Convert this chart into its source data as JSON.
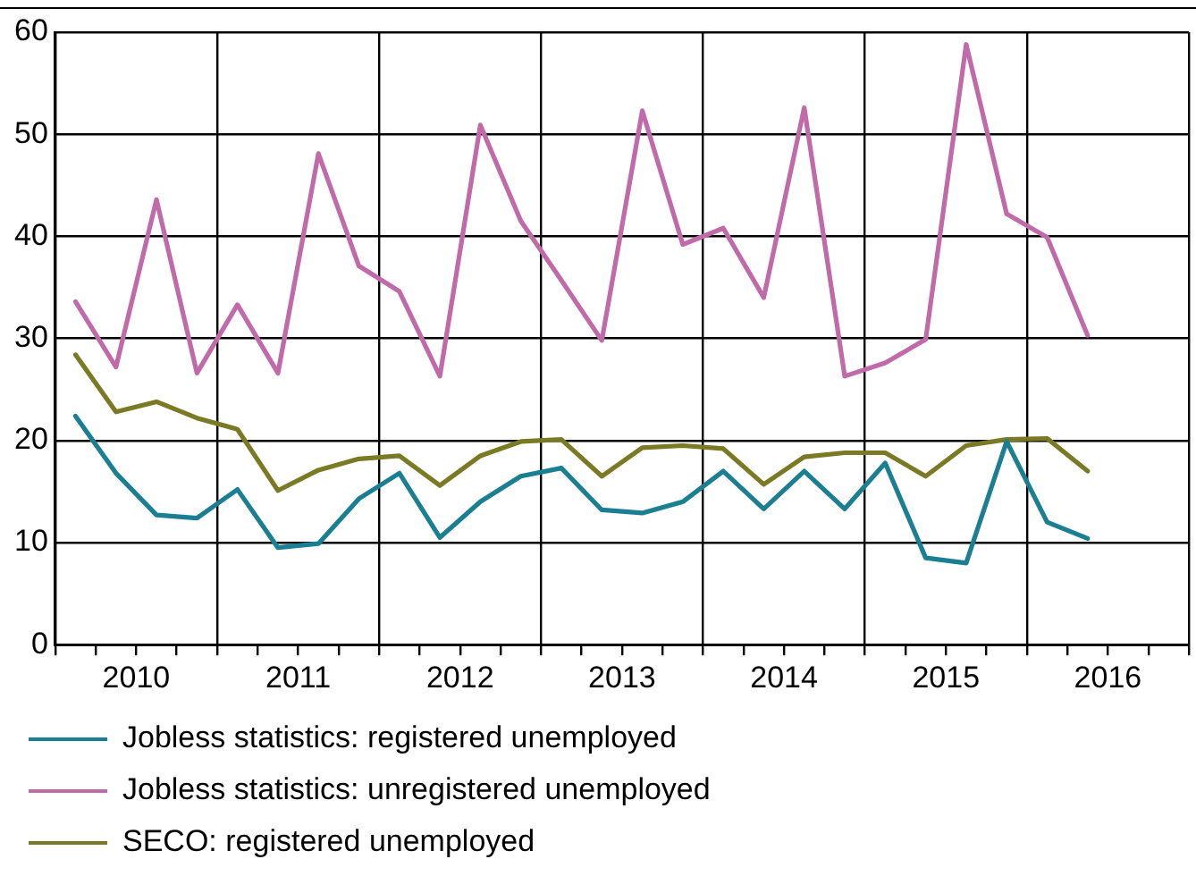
{
  "chart_data": {
    "type": "line",
    "x": [
      2010.125,
      2010.375,
      2010.625,
      2010.875,
      2011.125,
      2011.375,
      2011.625,
      2011.875,
      2012.125,
      2012.375,
      2012.625,
      2012.875,
      2013.125,
      2013.375,
      2013.625,
      2013.875,
      2014.125,
      2014.375,
      2014.625,
      2014.875,
      2015.125,
      2015.375,
      2015.625,
      2015.875,
      2016.125,
      2016.375
    ],
    "series": [
      {
        "name": "Jobless statistics: registered unemployed",
        "color": "#1b7f94",
        "values": [
          22.4,
          16.8,
          12.7,
          12.4,
          15.2,
          9.5,
          9.9,
          14.3,
          16.8,
          10.5,
          14.0,
          16.5,
          17.3,
          13.2,
          12.9,
          14.0,
          17.0,
          13.3,
          17.0,
          13.3,
          17.8,
          8.5,
          8.0,
          19.9,
          12.0,
          10.4
        ]
      },
      {
        "name": "Jobless statistics: unregistered unemployed",
        "color": "#c06aaa",
        "values": [
          33.6,
          27.2,
          43.6,
          26.6,
          33.3,
          26.6,
          48.1,
          37.1,
          34.6,
          26.3,
          50.9,
          41.5,
          35.7,
          29.8,
          52.3,
          39.2,
          40.8,
          34.0,
          52.6,
          26.3,
          27.6,
          29.9,
          58.8,
          42.2,
          39.9,
          30.3
        ]
      },
      {
        "name": "SECO: registered unemployed",
        "color": "#7a7a24",
        "values": [
          28.4,
          22.8,
          23.8,
          22.2,
          21.1,
          15.1,
          17.1,
          18.2,
          18.5,
          15.6,
          18.5,
          19.9,
          20.1,
          16.5,
          19.3,
          19.5,
          19.2,
          15.7,
          18.4,
          18.8,
          18.8,
          16.5,
          19.5,
          20.1,
          20.2,
          17.0
        ]
      }
    ],
    "xlim": [
      2010,
      2017
    ],
    "xticks": [
      {
        "value": 2010,
        "label": null
      },
      {
        "value": 2010.25,
        "label": null
      },
      {
        "value": 2010.5,
        "label": "2010"
      },
      {
        "value": 2010.75,
        "label": null
      },
      {
        "value": 2011,
        "label": null
      },
      {
        "value": 2011.25,
        "label": null
      },
      {
        "value": 2011.5,
        "label": "2011"
      },
      {
        "value": 2011.75,
        "label": null
      },
      {
        "value": 2012,
        "label": null
      },
      {
        "value": 2012.25,
        "label": null
      },
      {
        "value": 2012.5,
        "label": "2012"
      },
      {
        "value": 2012.75,
        "label": null
      },
      {
        "value": 2013,
        "label": null
      },
      {
        "value": 2013.25,
        "label": null
      },
      {
        "value": 2013.5,
        "label": "2013"
      },
      {
        "value": 2013.75,
        "label": null
      },
      {
        "value": 2014,
        "label": null
      },
      {
        "value": 2014.25,
        "label": null
      },
      {
        "value": 2014.5,
        "label": "2014"
      },
      {
        "value": 2014.75,
        "label": null
      },
      {
        "value": 2015,
        "label": null
      },
      {
        "value": 2015.25,
        "label": null
      },
      {
        "value": 2015.5,
        "label": "2015"
      },
      {
        "value": 2015.75,
        "label": null
      },
      {
        "value": 2016,
        "label": null
      },
      {
        "value": 2016.25,
        "label": null
      },
      {
        "value": 2016.5,
        "label": "2016"
      },
      {
        "value": 2016.75,
        "label": null
      },
      {
        "value": 2017,
        "label": null
      }
    ],
    "ylim": [
      0,
      60
    ],
    "yticks": [
      0,
      10,
      20,
      30,
      40,
      50,
      60
    ],
    "grid": true,
    "legend": "bottom",
    "marker": "none",
    "line_style": "solid"
  }
}
